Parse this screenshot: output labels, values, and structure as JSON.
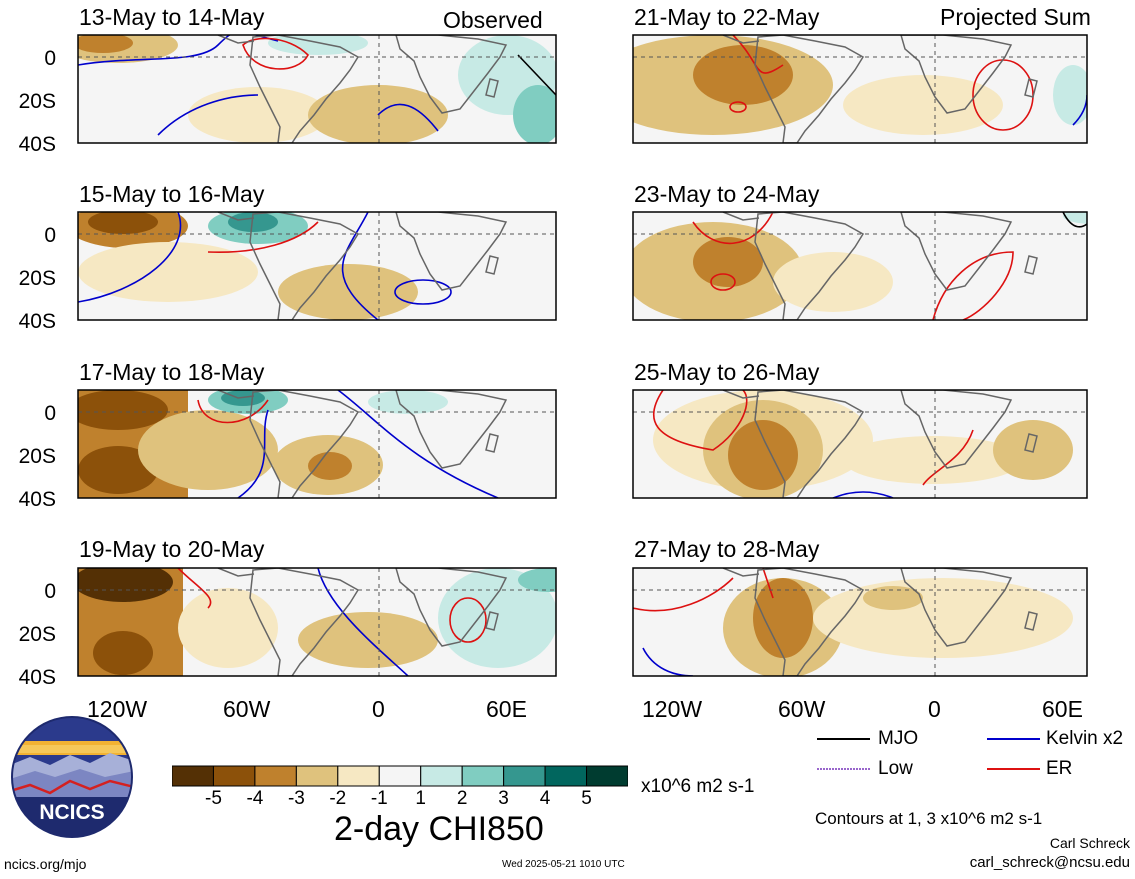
{
  "panels": {
    "observed_label": "Observed",
    "projected_label": "Projected Sum",
    "left": [
      "13-May to 14-May",
      "15-May to 16-May",
      "17-May to 18-May",
      "19-May to 20-May"
    ],
    "right": [
      "21-May to 22-May",
      "23-May to 24-May",
      "25-May to 26-May",
      "27-May to 28-May"
    ]
  },
  "axes": {
    "lat_ticks": [
      "0",
      "20S",
      "40S"
    ],
    "lon_ticks": [
      "120W",
      "60W",
      "0",
      "60E"
    ]
  },
  "legend": {
    "mjo": "MJO",
    "kelvin": "Kelvin x2",
    "low": "Low",
    "er": "ER",
    "colors": {
      "mjo": "#000000",
      "kelvin": "#0000cc",
      "low": "#9966cc",
      "er": "#dd1111"
    }
  },
  "colorbar": {
    "labels": [
      "-5",
      "-4",
      "-3",
      "-2",
      "-1",
      "1",
      "2",
      "3",
      "4",
      "5"
    ],
    "colors": [
      "#543005",
      "#8c510a",
      "#bf812d",
      "#dfc27d",
      "#f6e8c3",
      "#f5f5f5",
      "#c7eae5",
      "#80cdc1",
      "#35978f",
      "#01665e",
      "#003c30"
    ],
    "units": "x10^6 m2 s-1"
  },
  "title": "2-day CHI850",
  "contours_note": "Contours at 1, 3 x10^6 m2 s-1",
  "author": "Carl Schreck",
  "email": "carl_schreck@ncsu.edu",
  "site": "ncics.org/mjo",
  "timestamp": "Wed 2025-05-21 1010 UTC",
  "logo_text": "NCICS"
}
